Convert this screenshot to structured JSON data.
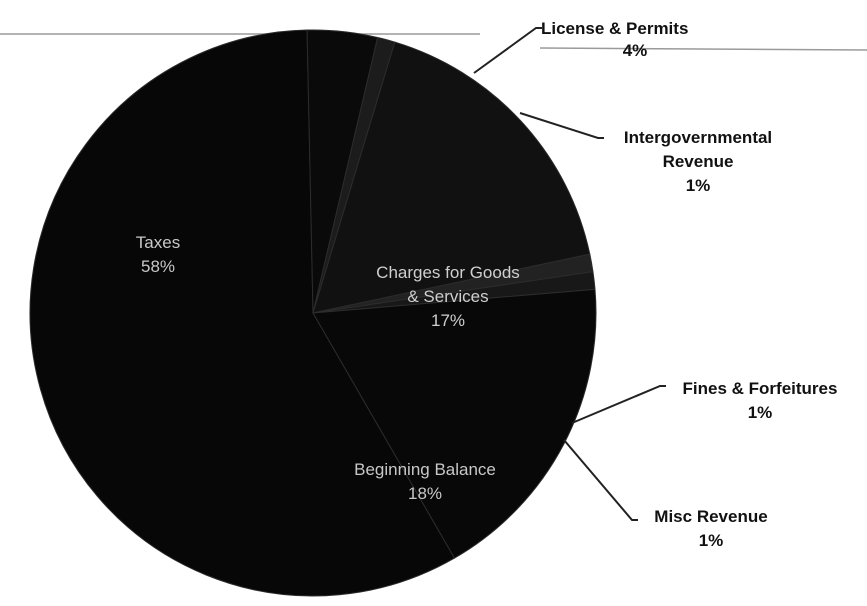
{
  "chart_data": {
    "type": "pie",
    "slices": [
      {
        "label": "Taxes",
        "lines": [
          "Taxes"
        ],
        "pct_text": "58%",
        "value": 58,
        "color": "#070707",
        "text_color": "#c8c8c8",
        "label_type": "inside"
      },
      {
        "label": "License & Permits",
        "lines": [
          "License & Permits"
        ],
        "pct_text": "4%",
        "value": 4,
        "color": "#0a0a0a",
        "label_type": "outside"
      },
      {
        "label": "Intergovernmental Revenue",
        "lines": [
          "Intergovernmental",
          "Revenue"
        ],
        "pct_text": "1%",
        "value": 1,
        "color": "#1c1c1c",
        "label_type": "outside"
      },
      {
        "label": "Charges for Goods & Services",
        "lines": [
          "Charges for Goods",
          "& Services"
        ],
        "pct_text": "17%",
        "value": 17,
        "color": "#111111",
        "text_color": "#cfcfcf",
        "label_type": "inside"
      },
      {
        "label": "Fines & Forfeitures",
        "lines": [
          "Fines & Forfeitures"
        ],
        "pct_text": "1%",
        "value": 1,
        "color": "#222222",
        "label_type": "outside"
      },
      {
        "label": "Misc Revenue",
        "lines": [
          "Misc Revenue"
        ],
        "pct_text": "1%",
        "value": 1,
        "color": "#181818",
        "label_type": "outside"
      },
      {
        "label": "Beginning Balance",
        "lines": [
          "Beginning Balance"
        ],
        "pct_text": "18%",
        "value": 18,
        "color": "#080808",
        "text_color": "#c8c8c8",
        "label_type": "inside"
      }
    ]
  }
}
